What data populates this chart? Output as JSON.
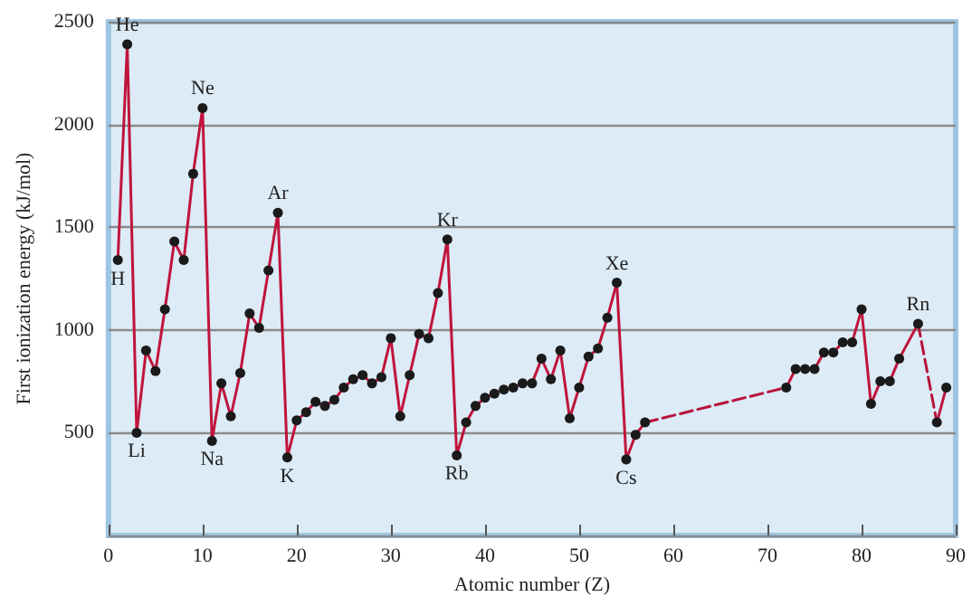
{
  "chart_data": {
    "type": "line",
    "xlabel": "Atomic number (Z)",
    "ylabel": "First ionization energy (kJ/mol)",
    "xlim": [
      0,
      90
    ],
    "xticks": [
      0,
      10,
      20,
      30,
      40,
      50,
      60,
      70,
      80,
      90
    ],
    "ylim": [
      0,
      2500
    ],
    "yticks": [
      500,
      1000,
      1500,
      2000,
      2500
    ],
    "grid": "y",
    "marker": "circle",
    "line_style": "solid",
    "series": [
      {
        "color": "#c0143c",
        "x": [
          1,
          2,
          3,
          4,
          5,
          6,
          7,
          8,
          9,
          10,
          11,
          12,
          13,
          14,
          15,
          16,
          17,
          18,
          19,
          20,
          21,
          22,
          23,
          24,
          25,
          26,
          27,
          28,
          29,
          30,
          31,
          32,
          33,
          34,
          35,
          36,
          37,
          38,
          39,
          40,
          41,
          42,
          43,
          44,
          45,
          46,
          47,
          48,
          49,
          50,
          51,
          52,
          53,
          54,
          55,
          56,
          57,
          58,
          72,
          73,
          74,
          75,
          76,
          77,
          78,
          79,
          80,
          81,
          82,
          83,
          84,
          86,
          87,
          88,
          89
        ],
        "values": [
          1340,
          2390,
          500,
          900,
          800,
          1100,
          1430,
          1340,
          1760,
          2080,
          460,
          740,
          580,
          790,
          1080,
          1010,
          1290,
          1570,
          380,
          560,
          600,
          650,
          630,
          660,
          720,
          760,
          780,
          740,
          770,
          960,
          580,
          780,
          980,
          960,
          1180,
          1440,
          390,
          550,
          630,
          670,
          690,
          710,
          720,
          740,
          740,
          860,
          760,
          900,
          570,
          720,
          870,
          910,
          1060,
          1230,
          370,
          490,
          550,
          null,
          720,
          810,
          810,
          810,
          890,
          890,
          940,
          940,
          1100,
          640,
          750,
          750,
          860,
          1030,
          null,
          550,
          720
        ]
      },
      {
        "color": "#b8123a",
        "line_style": "dashed",
        "marker": "none",
        "x": [
          57,
          72
        ],
        "values": [
          550,
          720
        ]
      },
      {
        "color": "#b8123a",
        "line_style": "dashed",
        "marker": "none",
        "x": [
          86,
          88
        ],
        "values": [
          1030,
          550
        ]
      }
    ],
    "annotations": [
      {
        "text": "H",
        "x": 1,
        "y": 1340
      },
      {
        "text": "He",
        "x": 2,
        "y": 2390
      },
      {
        "text": "Li",
        "x": 3,
        "y": 500
      },
      {
        "text": "Ne",
        "x": 10,
        "y": 2080
      },
      {
        "text": "Na",
        "x": 11,
        "y": 460
      },
      {
        "text": "Ar",
        "x": 18,
        "y": 1570
      },
      {
        "text": "K",
        "x": 19,
        "y": 380
      },
      {
        "text": "Kr",
        "x": 36,
        "y": 1440
      },
      {
        "text": "Rb",
        "x": 37,
        "y": 390
      },
      {
        "text": "Xe",
        "x": 54,
        "y": 1230
      },
      {
        "text": "Cs",
        "x": 55,
        "y": 370
      },
      {
        "text": "Rn",
        "x": 86,
        "y": 1030
      }
    ]
  }
}
